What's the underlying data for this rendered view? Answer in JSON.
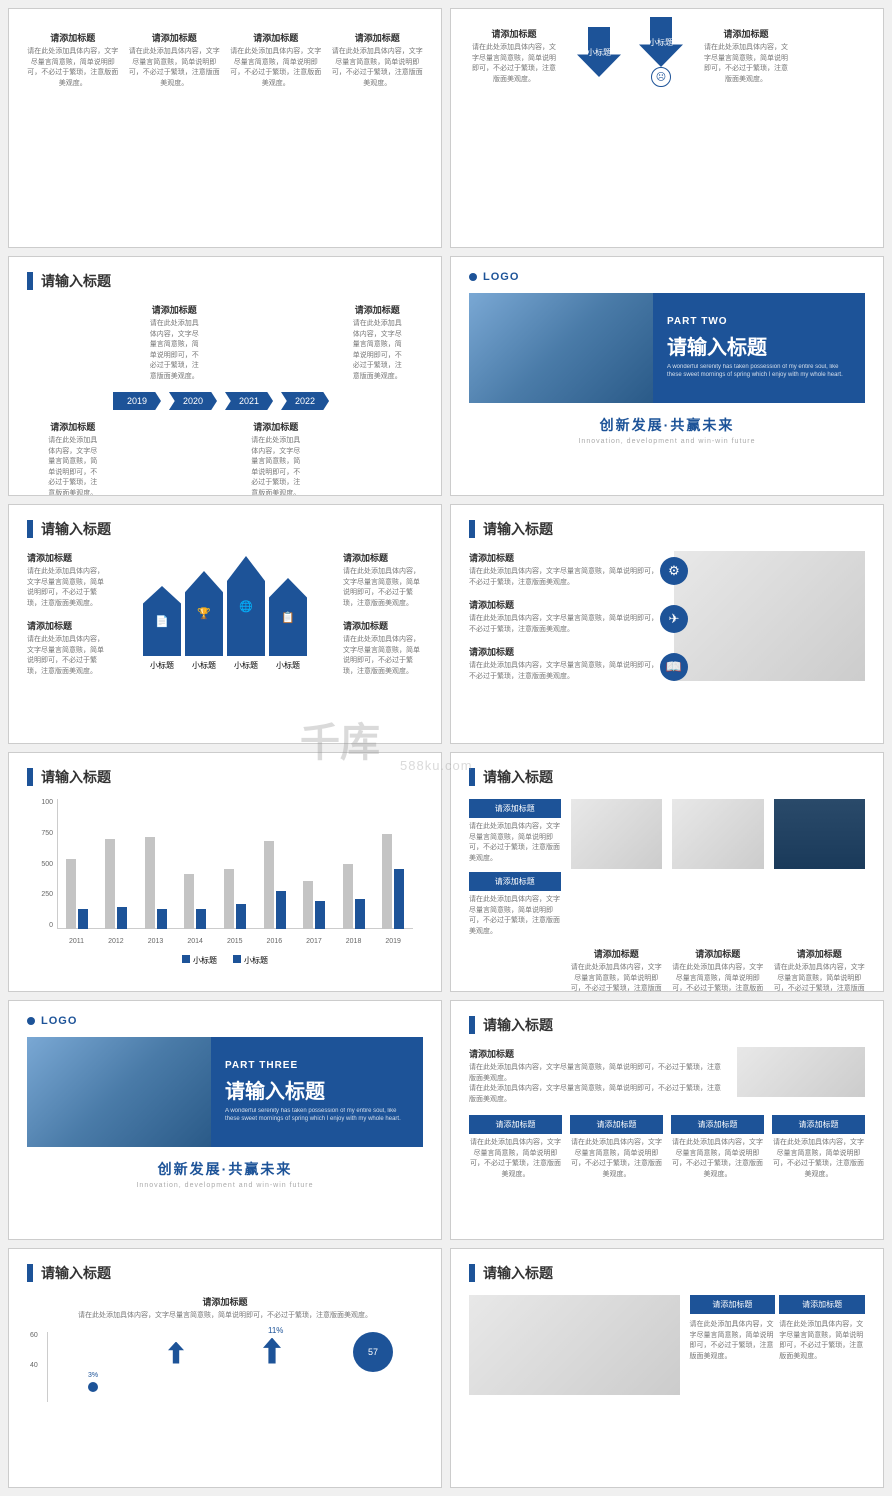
{
  "colors": {
    "primary": "#1d5398",
    "gray": "#c4c4c4",
    "text": "#333",
    "muted": "#777"
  },
  "common": {
    "slide_title": "请输入标题",
    "sub_title": "请添加标题",
    "desc": "请在此处添加具体内容，文字尽量言简意赅，简单说明即可，不必过于繁琐，注意版面美观度。",
    "logo": "LOGO",
    "footer_cn": "创新发展·共赢未来",
    "footer_en": "Innovation, development and win-win future",
    "small_label": "小标题"
  },
  "part2": {
    "label": "PART TWO",
    "title": "请输入标题",
    "sub": "A wonderful serenity has taken possession of my entire soul, like these sweet mornings of spring which I enjoy with my whole heart."
  },
  "part3": {
    "label": "PART THREE",
    "title": "请输入标题",
    "sub": "A wonderful serenity has taken possession of my entire soul, like these sweet mornings of spring which I enjoy with my whole heart."
  },
  "timeline": {
    "years": [
      "2019",
      "2020",
      "2021",
      "2022"
    ]
  },
  "arrow_chart": {
    "heights": [
      70,
      85,
      100,
      78
    ],
    "labels": [
      "小标题",
      "小标题",
      "小标题",
      "小标题"
    ]
  },
  "bar_chart": {
    "ylabels": [
      "100",
      "750",
      "500",
      "250",
      "0"
    ],
    "years": [
      "2011",
      "2012",
      "2013",
      "2014",
      "2015",
      "2016",
      "2017",
      "2018",
      "2019"
    ],
    "series1": [
      70,
      90,
      92,
      55,
      60,
      88,
      48,
      65,
      95
    ],
    "series2": [
      20,
      22,
      20,
      20,
      25,
      38,
      28,
      30,
      60
    ],
    "legend": [
      "小标题",
      "小标题"
    ]
  },
  "watermark": {
    "main": "千库",
    "sub": "588ku.com"
  }
}
